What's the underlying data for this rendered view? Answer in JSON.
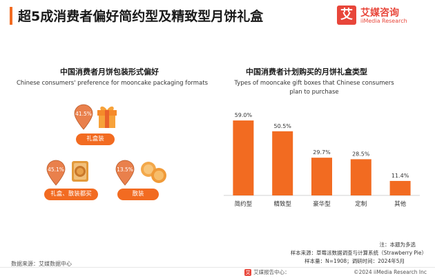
{
  "header": {
    "title": "超5成消费者偏好简约型及精致型月饼礼盒",
    "logo_mark": "艾",
    "logo_cn": "艾媒咨询",
    "logo_en": "iiMedia Research"
  },
  "left_chart": {
    "title": "中国消费者月饼包装形式偏好",
    "subtitle": "Chinese consumers' preference for mooncake packaging formats",
    "items": [
      {
        "label": "礼盒装",
        "value": 41.5,
        "value_label": "41.5%",
        "icon": "gift-box-icon"
      },
      {
        "label": "礼盒、散装都买",
        "value": 45.1,
        "value_label": "45.1%",
        "icon": "mooncake-box-icon"
      },
      {
        "label": "散装",
        "value": 13.5,
        "value_label": "13.5%",
        "icon": "loose-mooncakes-icon"
      }
    ]
  },
  "chart_data": {
    "type": "bar",
    "title": "中国消费者计划购买的月饼礼盒类型",
    "subtitle": "Types of mooncake gift boxes that Chinese consumers plan to purchase",
    "subtitle_line1": "Types of mooncake gift boxes that Chinese consumers",
    "subtitle_line2": "plan to purchase",
    "categories": [
      "简约型",
      "精致型",
      "豪华型",
      "定制",
      "其他"
    ],
    "values": [
      59.0,
      50.5,
      29.7,
      28.5,
      11.4
    ],
    "value_labels": [
      "59.0%",
      "50.5%",
      "29.7%",
      "28.5%",
      "11.4%"
    ],
    "ylim": [
      0,
      65
    ],
    "grid": false,
    "bar_color": "#f26b21"
  },
  "notes": {
    "note": "注：本题为多选",
    "source": "样本来源：草莓派数据调查与计算系统（Strawberry Pie）",
    "sample": "样本量：N=1908；调研时间：2024年5月",
    "data_source": "数据来源：艾媒数据中心",
    "footer": "艾媒报告中心：",
    "copyright": "©2024  iiMedia Research  Inc"
  },
  "colors": {
    "accent": "#f26b21",
    "brand": "#e8463a",
    "pin": "#e9804c"
  }
}
